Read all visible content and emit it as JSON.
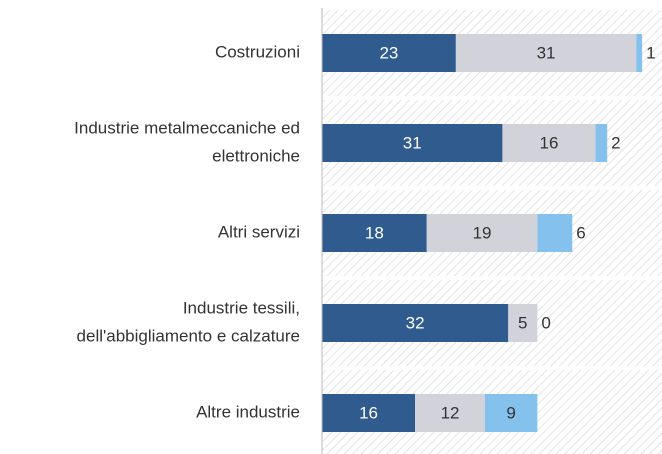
{
  "chart_data": {
    "type": "stacked-bar-horizontal",
    "categories": [
      [
        "Costruzioni"
      ],
      [
        "Industrie metalmeccaniche ed",
        "elettroniche"
      ],
      [
        "Altri servizi"
      ],
      [
        "Industrie tessili,",
        "dell'abbigliamento e calzature"
      ],
      [
        "Altre industrie"
      ]
    ],
    "series": [
      {
        "color": "#2f5b8e",
        "values": [
          23,
          31,
          18,
          32,
          16
        ]
      },
      {
        "color": "#d2d2da",
        "values": [
          31,
          16,
          19,
          5,
          12
        ]
      },
      {
        "color": "#84c1ec",
        "values": [
          1,
          2,
          6,
          0,
          9
        ]
      }
    ]
  }
}
